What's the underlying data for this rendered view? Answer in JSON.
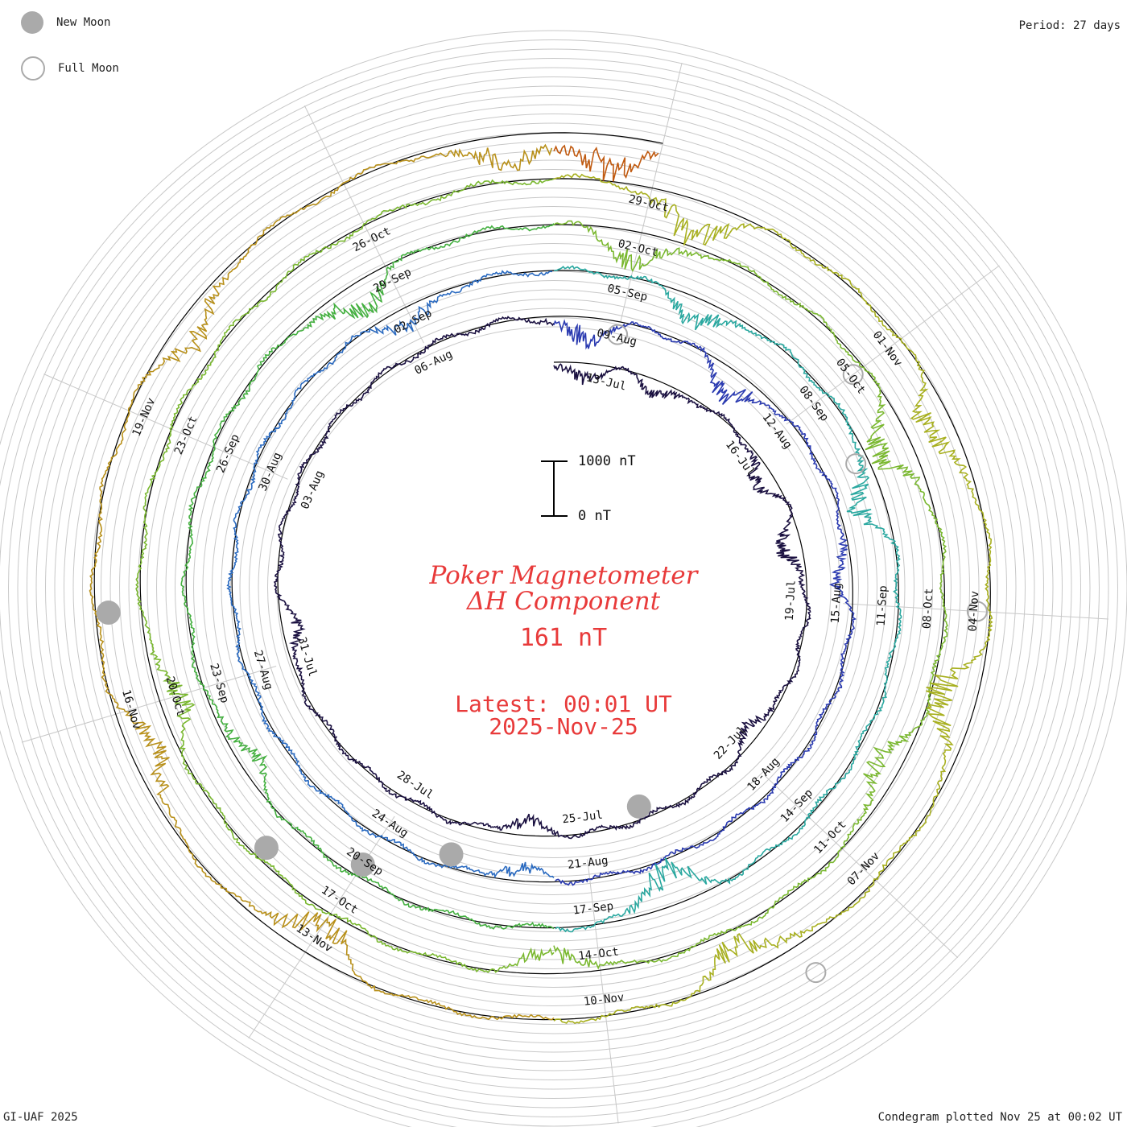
{
  "header": {
    "legend": {
      "new_moon": "New Moon",
      "full_moon": "Full Moon"
    },
    "period_label": "Period: 27 days"
  },
  "footer": {
    "credit": "GI-UAF 2025",
    "plotted": "Condegram plotted Nov 25 at 00:02 UT"
  },
  "center": {
    "title_line1": "Poker Magnetometer",
    "title_line2": "ΔH Component",
    "current_value": "161 nT",
    "latest_time": "Latest: 00:01 UT",
    "latest_date": "2025-Nov-25"
  },
  "scale_bar": {
    "top_label": "1000 nT",
    "bottom_label": "0 nT"
  },
  "colors": {
    "title": "#e83a3a",
    "grid": "#c8c8c8",
    "baseline": "#000000",
    "moon_new": "#aaaaaa",
    "moon_full": "#aaaaaa",
    "traces": [
      "#1a1040",
      "#2a3ab0",
      "#2a6ac0",
      "#2aa8a0",
      "#44b040",
      "#7ab830",
      "#a8b020",
      "#b8901a",
      "#c05a10",
      "#b81818"
    ]
  },
  "chart_data": {
    "type": "line",
    "subtype": "spiral condegram",
    "period_days": 27,
    "units": "nT",
    "data_range": [
      "2025-Jul-12",
      "2025-Nov-25"
    ],
    "date_labels": [
      {
        "text": "13-Jul",
        "day": 1
      },
      {
        "text": "16-Jul",
        "day": 4
      },
      {
        "text": "19-Jul",
        "day": 7
      },
      {
        "text": "22-Jul",
        "day": 10
      },
      {
        "text": "25-Jul",
        "day": 13
      },
      {
        "text": "28-Jul",
        "day": 16
      },
      {
        "text": "31-Jul",
        "day": 19
      },
      {
        "text": "03-Aug",
        "day": 22
      },
      {
        "text": "06-Aug",
        "day": 25
      },
      {
        "text": "09-Aug",
        "day": 28
      },
      {
        "text": "12-Aug",
        "day": 31
      },
      {
        "text": "15-Aug",
        "day": 34
      },
      {
        "text": "18-Aug",
        "day": 37
      },
      {
        "text": "21-Aug",
        "day": 40
      },
      {
        "text": "24-Aug",
        "day": 43
      },
      {
        "text": "27-Aug",
        "day": 46
      },
      {
        "text": "30-Aug",
        "day": 49
      },
      {
        "text": "02-Sep",
        "day": 52
      },
      {
        "text": "05-Sep",
        "day": 55
      },
      {
        "text": "08-Sep",
        "day": 58
      },
      {
        "text": "11-Sep",
        "day": 61
      },
      {
        "text": "14-Sep",
        "day": 64
      },
      {
        "text": "17-Sep",
        "day": 67
      },
      {
        "text": "20-Sep",
        "day": 70
      },
      {
        "text": "23-Sep",
        "day": 73
      },
      {
        "text": "26-Sep",
        "day": 76
      },
      {
        "text": "29-Sep",
        "day": 79
      },
      {
        "text": "02-Oct",
        "day": 82
      },
      {
        "text": "05-Oct",
        "day": 85
      },
      {
        "text": "08-Oct",
        "day": 88
      },
      {
        "text": "11-Oct",
        "day": 91
      },
      {
        "text": "14-Oct",
        "day": 94
      },
      {
        "text": "17-Oct",
        "day": 97
      },
      {
        "text": "20-Oct",
        "day": 100
      },
      {
        "text": "23-Oct",
        "day": 103
      },
      {
        "text": "26-Oct",
        "day": 106
      },
      {
        "text": "29-Oct",
        "day": 109
      },
      {
        "text": "01-Nov",
        "day": 112
      },
      {
        "text": "04-Nov",
        "day": 115
      },
      {
        "text": "07-Nov",
        "day": 118
      },
      {
        "text": "10-Nov",
        "day": 121
      },
      {
        "text": "13-Nov",
        "day": 124
      },
      {
        "text": "16-Nov",
        "day": 127
      },
      {
        "text": "19-Nov",
        "day": 130
      }
    ],
    "moon_phases": [
      {
        "phase": "full",
        "day": 28
      },
      {
        "phase": "new",
        "day": 12
      },
      {
        "phase": "full",
        "day": 59
      },
      {
        "phase": "new",
        "day": 42
      },
      {
        "phase": "full",
        "day": 85
      },
      {
        "phase": "new",
        "day": 70
      },
      {
        "phase": "full",
        "day": 115
      },
      {
        "phase": "new",
        "day": 98
      },
      {
        "phase": "new",
        "day": 128
      },
      {
        "phase": "full",
        "day": 146
      }
    ],
    "disturbances": [
      {
        "day": 0.5,
        "amp": 300
      },
      {
        "day": 2.0,
        "amp": 250
      },
      {
        "day": 4.5,
        "amp": 350
      },
      {
        "day": 6.0,
        "amp": 400
      },
      {
        "day": 9.5,
        "amp": 250
      },
      {
        "day": 14.0,
        "amp": 300
      },
      {
        "day": 19.5,
        "amp": 300
      },
      {
        "day": 27.5,
        "amp": 450
      },
      {
        "day": 30.0,
        "amp": 500
      },
      {
        "day": 33.5,
        "amp": 300
      },
      {
        "day": 41.0,
        "amp": 250
      },
      {
        "day": 52.0,
        "amp": 350
      },
      {
        "day": 56.0,
        "amp": 450
      },
      {
        "day": 59.5,
        "amp": 550
      },
      {
        "day": 66.0,
        "amp": 700
      },
      {
        "day": 72.0,
        "amp": 350
      },
      {
        "day": 78.5,
        "amp": 500
      },
      {
        "day": 82.0,
        "amp": 600
      },
      {
        "day": 86.0,
        "amp": 700
      },
      {
        "day": 90.0,
        "amp": 500
      },
      {
        "day": 94.5,
        "amp": 400
      },
      {
        "day": 100.0,
        "amp": 450
      },
      {
        "day": 109.5,
        "amp": 700
      },
      {
        "day": 113.0,
        "amp": 550
      },
      {
        "day": 116.0,
        "amp": 800
      },
      {
        "day": 119.5,
        "amp": 600
      },
      {
        "day": 124.0,
        "amp": 650
      },
      {
        "day": 126.5,
        "amp": 550
      },
      {
        "day": 131.0,
        "amp": 450
      },
      {
        "day": 134.5,
        "amp": 500
      },
      {
        "day": 135.5,
        "amp": 650
      }
    ]
  }
}
